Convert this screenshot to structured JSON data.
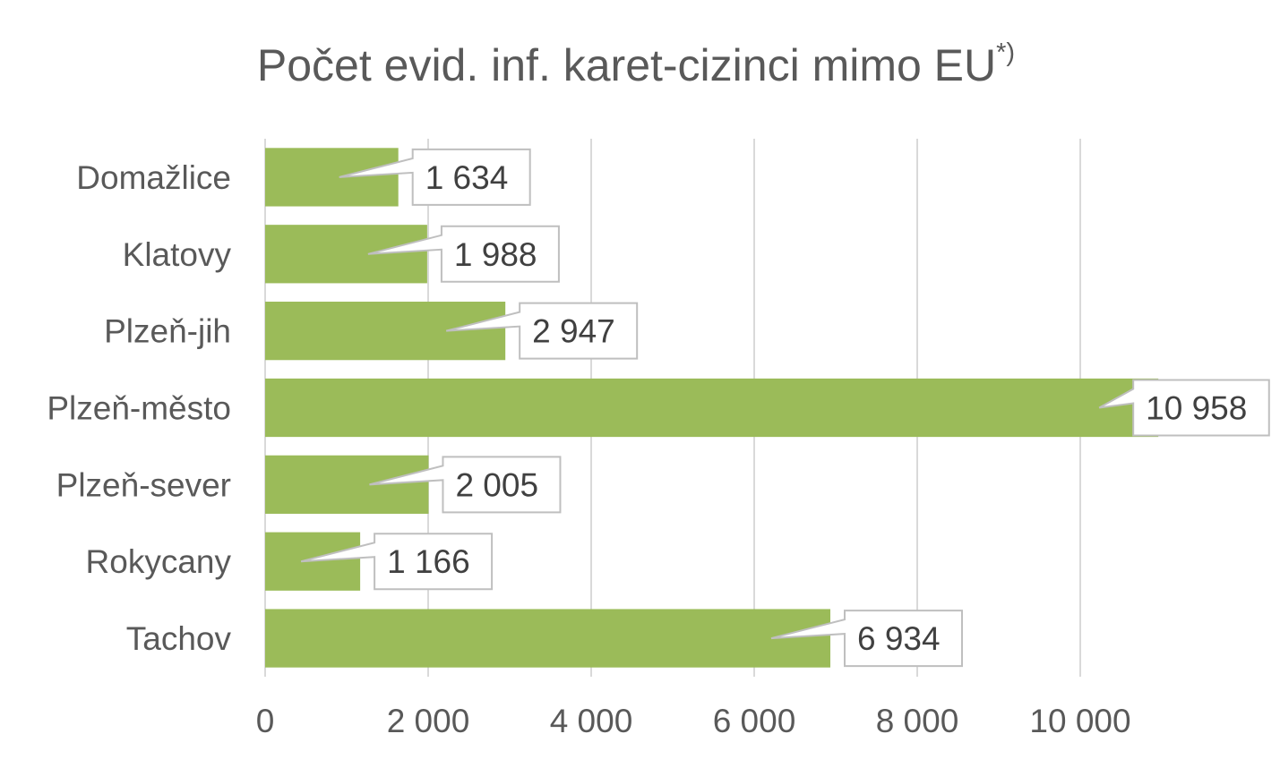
{
  "chart_data": {
    "type": "bar",
    "orientation": "horizontal",
    "title": "Počet evid. inf. karet-cizinci mimo EU",
    "title_superscript": "*)",
    "categories": [
      "Domažlice",
      "Klatovy",
      "Plzeň-jih",
      "Plzeň-město",
      "Plzeň-sever",
      "Rokycany",
      "Tachov"
    ],
    "values": [
      1634,
      1988,
      2947,
      10958,
      2005,
      1166,
      6934
    ],
    "value_labels": [
      "1 634",
      "1 988",
      "2 947",
      "10 958",
      "2 005",
      "1 166",
      "6 934"
    ],
    "x_ticks": [
      0,
      2000,
      4000,
      6000,
      8000,
      10000
    ],
    "x_tick_labels": [
      "0",
      "2 000",
      "4 000",
      "6 000",
      "8 000",
      "10 000"
    ],
    "xlim": [
      0,
      12000
    ],
    "xlabel": "",
    "ylabel": "",
    "grid": "vertical",
    "legend": "none",
    "bar_color": "#9bbb59",
    "data_label_style": "callout"
  }
}
